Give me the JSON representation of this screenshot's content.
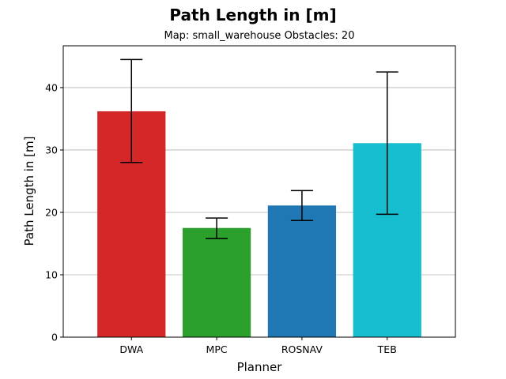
{
  "chart_data": {
    "type": "bar",
    "title": "Path Length in [m]",
    "subtitle": "Map: small_warehouse Obstacles: 20",
    "xlabel": "Planner",
    "ylabel": "Path Length in [m]",
    "categories": [
      "DWA",
      "MPC",
      "ROSNAV",
      "TEB"
    ],
    "values": [
      36.2,
      17.5,
      21.1,
      31.1
    ],
    "error_low": [
      28.0,
      15.8,
      18.7,
      19.7
    ],
    "error_high": [
      44.5,
      19.1,
      23.5,
      42.5
    ],
    "colors": [
      "#d62728",
      "#2ca02c",
      "#1f77b4",
      "#17becf"
    ],
    "ylim": [
      0,
      46.7
    ],
    "yticks": [
      0,
      10,
      20,
      30,
      40
    ],
    "grid": "y"
  }
}
